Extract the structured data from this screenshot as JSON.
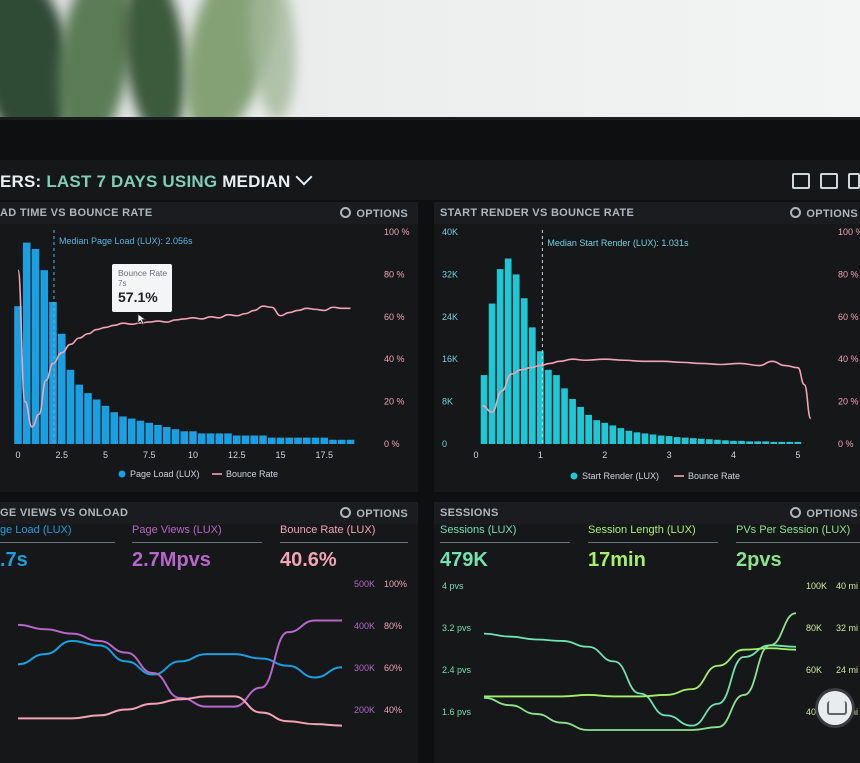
{
  "header": {
    "title_prefix": "ERS:",
    "title_mid": " LAST 7 DAYS USING ",
    "title_strong": "MEDIAN",
    "icons": [
      "monitor-icon",
      "expand-icon",
      "tablet-icon"
    ]
  },
  "colors": {
    "blue": "#1a9fe0",
    "cyan": "#1fc7d4",
    "pink": "#f2a3b4",
    "purple": "#b667c9",
    "green": "#6fe3b1",
    "lime": "#a7ef6a"
  },
  "panels": {
    "load_bounce": {
      "title": "AD TIME VS BOUNCE RATE",
      "options": "OPTIONS",
      "median_label": "Median Page Load (LUX): 2.056s",
      "tooltip": {
        "title": "Bounce Rate",
        "sub": "7s",
        "value": "57.1%"
      },
      "legend": [
        "Page Load (LUX)",
        "Bounce Rate"
      ]
    },
    "render_bounce": {
      "title": "START RENDER VS BOUNCE RATE",
      "options": "OPTIONS",
      "median_label": "Median Start Render (LUX): 1.031s",
      "legend": [
        "Start Render (LUX)",
        "Bounce Rate"
      ]
    },
    "views_onload": {
      "title": "GE VIEWS VS ONLOAD",
      "options": "OPTIONS",
      "kpis": [
        {
          "label": "ge Load (LUX)",
          "value": ".7s"
        },
        {
          "label": "Page Views (LUX)",
          "value": "2.7Mpvs"
        },
        {
          "label": "Bounce Rate (LUX)",
          "value": "40.6%"
        }
      ]
    },
    "sessions": {
      "title": "SESSIONS",
      "options": "OPTIONS",
      "kpis": [
        {
          "label": "Sessions (LUX)",
          "value": "479K"
        },
        {
          "label": "Session Length (LUX)",
          "value": "17min"
        },
        {
          "label": "PVs Per Session (LUX)",
          "value": "2pvs"
        }
      ]
    }
  },
  "chart_data": [
    {
      "type": "bar",
      "title": "AD TIME VS BOUNCE RATE",
      "x_ticks": [
        "0",
        "2.5",
        "5",
        "7.5",
        "10",
        "12.5",
        "15",
        "17.5"
      ],
      "y2_ticks": [
        "100 %",
        "80 %",
        "60 %",
        "40 %",
        "20 %",
        "0 %"
      ],
      "xlim": [
        0,
        20
      ],
      "y2lim": [
        0,
        100
      ],
      "median_x": 2.056,
      "series": [
        {
          "name": "Page Load (LUX)",
          "kind": "bar",
          "bar_width": 0.5,
          "x": [
            0,
            0.5,
            1,
            1.5,
            2,
            2.5,
            3,
            3.5,
            4,
            4.5,
            5,
            5.5,
            6,
            6.5,
            7,
            7.5,
            8,
            8.5,
            9,
            9.5,
            10,
            10.5,
            11,
            11.5,
            12,
            12.5,
            13,
            13.5,
            14,
            14.5,
            15,
            15.5,
            16,
            16.5,
            17,
            17.5,
            18,
            18.5,
            19
          ],
          "values": [
            65,
            95,
            92,
            82,
            67,
            52,
            35,
            28,
            24,
            21,
            18,
            15,
            13,
            12,
            11,
            10,
            9,
            8,
            7,
            6,
            6,
            5,
            5,
            5,
            5,
            4,
            4,
            4,
            4,
            3,
            3,
            3,
            3,
            3,
            3,
            3,
            2,
            2,
            2
          ]
        },
        {
          "name": "Bounce Rate",
          "kind": "line",
          "x": [
            0,
            0.4,
            0.8,
            1.2,
            1.6,
            2,
            2.5,
            3,
            3.5,
            4,
            4.5,
            5,
            5.5,
            6,
            6.5,
            7,
            7.5,
            8,
            8.5,
            9,
            9.5,
            10,
            10.5,
            11,
            11.5,
            12,
            12.5,
            13,
            13.5,
            14,
            14.5,
            15,
            15.5,
            16,
            16.5,
            17,
            17.5,
            18,
            18.5,
            19
          ],
          "values": [
            82,
            20,
            8,
            14,
            30,
            38,
            43,
            47,
            50,
            52,
            54,
            55,
            56,
            57,
            56.5,
            57.1,
            57.5,
            58,
            57.5,
            58.5,
            59,
            59.5,
            59,
            60,
            59.5,
            61,
            60.5,
            61.5,
            63,
            65,
            64.5,
            60.5,
            62,
            63,
            64,
            63.5,
            63,
            64.5,
            64,
            64
          ]
        }
      ]
    },
    {
      "type": "bar",
      "title": "START RENDER VS BOUNCE RATE",
      "x_ticks": [
        "0",
        "1",
        "2",
        "3",
        "4",
        "5"
      ],
      "y_ticks": [
        "40K",
        "32K",
        "24K",
        "16K",
        "8K",
        "0"
      ],
      "y2_ticks": [
        "100 %",
        "80 %",
        "60 %",
        "40 %",
        "20 %",
        "0 %"
      ],
      "xlim": [
        0,
        5.25
      ],
      "ylim": [
        0,
        40000
      ],
      "y2lim": [
        0,
        100
      ],
      "median_x": 1.031,
      "series": [
        {
          "name": "Start Render (LUX)",
          "kind": "bar",
          "bar_width": 0.125,
          "x": [
            0.125,
            0.25,
            0.375,
            0.5,
            0.625,
            0.75,
            0.875,
            1,
            1.125,
            1.25,
            1.375,
            1.5,
            1.625,
            1.75,
            1.875,
            2,
            2.125,
            2.25,
            2.375,
            2.5,
            2.625,
            2.75,
            2.875,
            3,
            3.125,
            3.25,
            3.375,
            3.5,
            3.625,
            3.75,
            3.875,
            4,
            4.125,
            4.25,
            4.375,
            4.5,
            4.625,
            4.75,
            4.875,
            5
          ],
          "values": [
            13000,
            26500,
            33000,
            35000,
            32000,
            27500,
            22000,
            17500,
            14000,
            13000,
            10500,
            8500,
            7000,
            5500,
            4500,
            4000,
            3500,
            3000,
            2500,
            2200,
            2000,
            1800,
            1600,
            1500,
            1300,
            1200,
            1100,
            1000,
            900,
            800,
            700,
            600,
            600,
            500,
            500,
            500,
            400,
            400,
            400,
            400
          ]
        },
        {
          "name": "Bounce Rate",
          "kind": "line",
          "x": [
            0.1,
            0.25,
            0.4,
            0.55,
            0.7,
            0.85,
            1,
            1.15,
            1.3,
            1.5,
            1.7,
            2,
            2.3,
            2.6,
            2.9,
            3.2,
            3.5,
            3.8,
            4.1,
            4.4,
            4.6,
            4.8,
            5,
            5.1,
            5.2
          ],
          "values": [
            18,
            15,
            25,
            33,
            35,
            36,
            37,
            38,
            39,
            40,
            39.5,
            40,
            39.5,
            39,
            39,
            38.5,
            38,
            37.5,
            38,
            37,
            39,
            37,
            36,
            28,
            12
          ]
        }
      ]
    },
    {
      "type": "line",
      "title": "GE VIEWS VS ONLOAD",
      "y_ticks_views": [
        "500K",
        "400K",
        "300K",
        "200K"
      ],
      "y_ticks_bounce": [
        "100%",
        "80%",
        "60%",
        "40%"
      ],
      "series": [
        {
          "name": "Page Load (LUX)",
          "values": [
            0.45,
            0.52,
            0.61,
            0.58,
            0.47,
            0.38,
            0.47,
            0.52,
            0.52,
            0.49,
            0.44,
            0.36,
            0.43
          ]
        },
        {
          "name": "Page Views (LUX)",
          "values": [
            0.72,
            0.69,
            0.66,
            0.61,
            0.53,
            0.39,
            0.22,
            0.16,
            0.16,
            0.29,
            0.67,
            0.75,
            0.75
          ]
        },
        {
          "name": "Bounce Rate (LUX)",
          "values": [
            0.08,
            0.08,
            0.08,
            0.1,
            0.14,
            0.18,
            0.21,
            0.23,
            0.23,
            0.12,
            0.06,
            0.04,
            0.03
          ]
        }
      ]
    },
    {
      "type": "line",
      "title": "SESSIONS",
      "y_ticks_pvs": [
        "4 pvs",
        "3.2 pvs",
        "2.4 pvs",
        "1.6 pvs"
      ],
      "y_ticks_sessions": [
        "100K",
        "80K",
        "60K",
        "40K"
      ],
      "y_ticks_length": [
        "40 mi",
        "32 mi",
        "24 mi",
        "16 mi"
      ],
      "series": [
        {
          "name": "Sessions (LUX)",
          "values": [
            0.66,
            0.64,
            0.62,
            0.61,
            0.57,
            0.47,
            0.25,
            0.1,
            0.03,
            0.18,
            0.5,
            0.58,
            0.57
          ]
        },
        {
          "name": "Session Length (LUX)",
          "values": [
            0.23,
            0.23,
            0.23,
            0.23,
            0.24,
            0.23,
            0.23,
            0.24,
            0.28,
            0.44,
            0.55,
            0.56,
            0.55
          ]
        },
        {
          "name": "PVs Per Session (LUX)",
          "values": [
            0.22,
            0.17,
            0.11,
            0.05,
            0.0,
            0.0,
            0.0,
            0.0,
            0.0,
            0.02,
            0.24,
            0.58,
            0.8
          ]
        }
      ]
    }
  ]
}
